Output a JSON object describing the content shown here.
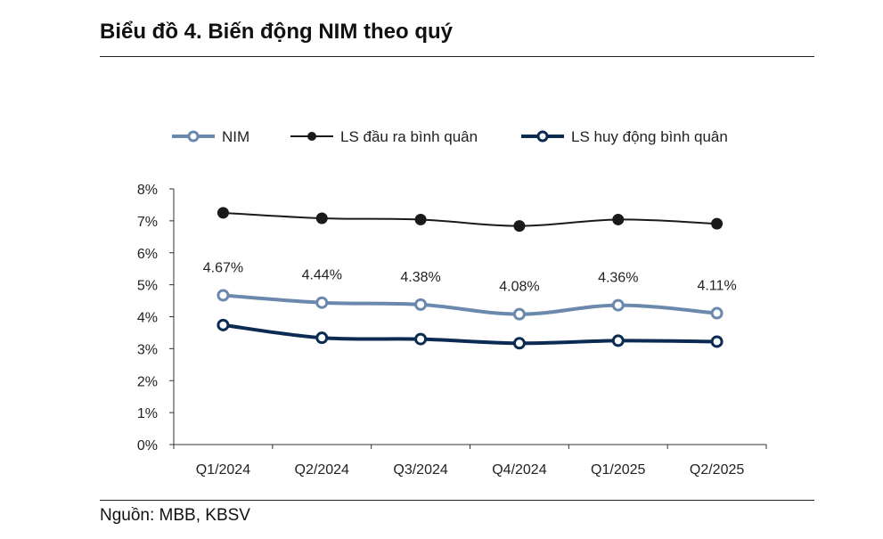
{
  "header": {
    "title": "Biểu đồ 4. Biến động NIM theo quý"
  },
  "footer": {
    "source": "Nguồn: MBB, KBSV"
  },
  "chart_data": {
    "type": "line",
    "title": "Biểu đồ 4. Biến động NIM theo quý",
    "categories": [
      "Q1/2024",
      "Q2/2024",
      "Q3/2024",
      "Q4/2024",
      "Q1/2025",
      "Q2/2025"
    ],
    "series": [
      {
        "name": "NIM",
        "values": [
          4.67,
          4.44,
          4.38,
          4.08,
          4.36,
          4.11
        ],
        "color": "#6b88ad",
        "marker": "hollow",
        "labels": [
          "4.67%",
          "4.44%",
          "4.38%",
          "4.08%",
          "4.36%",
          "4.11%"
        ]
      },
      {
        "name": "LS đầu ra bình quân",
        "values": [
          7.25,
          7.08,
          7.04,
          6.84,
          7.04,
          6.91
        ],
        "color": "#1a1a1a",
        "marker": "filled"
      },
      {
        "name": "LS huy động bình quân",
        "values": [
          3.74,
          3.34,
          3.3,
          3.17,
          3.25,
          3.22
        ],
        "color": "#0c2b52",
        "marker": "hollow"
      }
    ],
    "y_ticks": [
      "0%",
      "1%",
      "2%",
      "3%",
      "4%",
      "5%",
      "6%",
      "7%",
      "8%"
    ],
    "ylim": [
      0,
      8
    ],
    "xlabel": "",
    "ylabel": "",
    "legend": "top",
    "grid": false
  }
}
